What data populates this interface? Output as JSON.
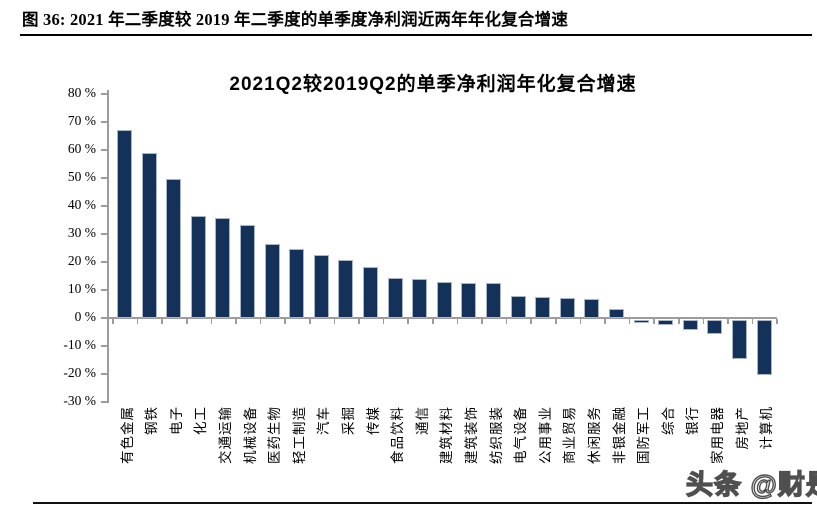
{
  "figure": {
    "caption": "图 36: 2021 年二季度较 2019 年二季度的单季度净利润近两年年化复合增速"
  },
  "watermark": "头条 @财是",
  "chart_data": {
    "type": "bar",
    "title": "2021Q2较2019Q2的单季净利润年化复合增速",
    "categories": [
      "有色金属",
      "钢铁",
      "电子",
      "化工",
      "交通运输",
      "机械设备",
      "医药生物",
      "轻工制造",
      "汽车",
      "采掘",
      "传媒",
      "食品饮料",
      "通信",
      "建筑材料",
      "建筑装饰",
      "纺织服装",
      "电气设备",
      "公用事业",
      "商业贸易",
      "休闲服务",
      "非银金融",
      "国防军工",
      "综合",
      "银行",
      "家用电器",
      "房地产",
      "计算机"
    ],
    "values": [
      67,
      59,
      49.5,
      36.6,
      35.6,
      33.1,
      26.6,
      24.8,
      22.4,
      20.8,
      18.3,
      14.3,
      13.9,
      12.7,
      12.5,
      12.5,
      8.0,
      7.4,
      7.2,
      6.7,
      3.3,
      -1.2,
      -1.8,
      -3.6,
      -4.9,
      -14.1,
      -19.8
    ],
    "ylabel": "",
    "xlabel": "",
    "ylim": [
      -30,
      80
    ],
    "ytick_step": 10,
    "ytick_suffix": " %",
    "grid": false,
    "legend": "none",
    "bar_color": "#14315a",
    "bar_edge_color": "#a9b6c9",
    "axis_color": "#9c9c9c"
  }
}
